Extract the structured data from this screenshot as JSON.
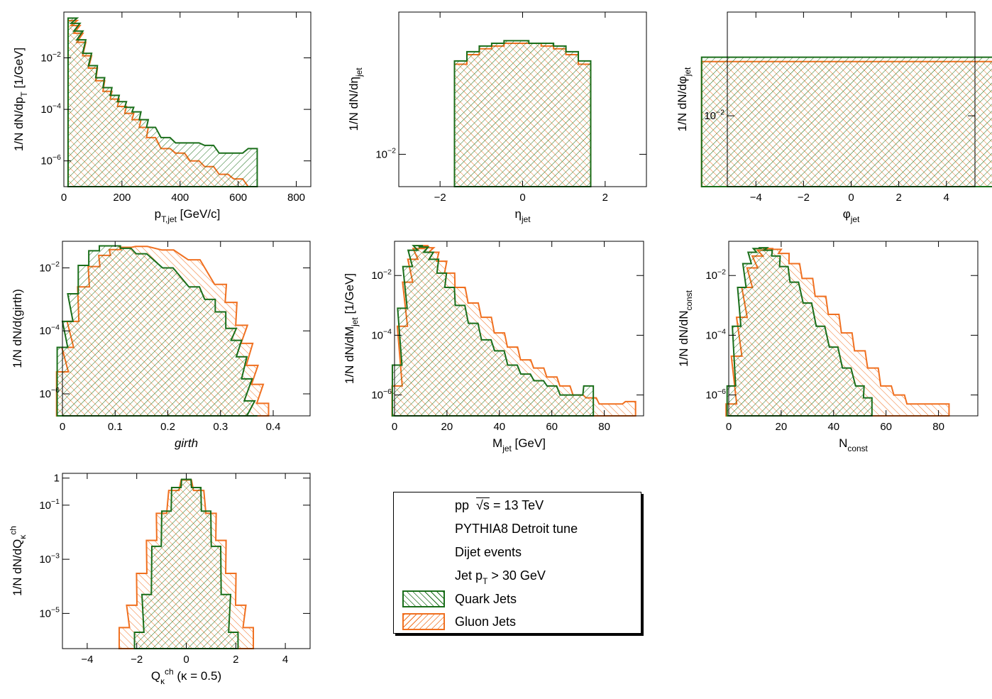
{
  "colors": {
    "quark": "#1a6e1a",
    "gluon": "#f07020",
    "axis": "#000000"
  },
  "legend": {
    "line1_prefix": "pp",
    "line1_sqrt": "√s",
    "line1_suffix": " = 13 TeV",
    "line2": "PYTHIA8 Detroit tune",
    "line3": "Dijet events",
    "line4_pre": "Jet p",
    "line4_sub": "T",
    "line4_post": " > 30 GeV",
    "quark_label": "Quark Jets",
    "gluon_label": "Gluon Jets"
  },
  "chart_data": [
    {
      "id": "pt",
      "type": "histogram",
      "logy": true,
      "xlabel": "p_T,jet [GeV/c]",
      "ylabel": "1/N dN/dp_T [1/GeV]",
      "xlim": [
        0,
        850
      ],
      "ylim": [
        1e-07,
        0.6
      ],
      "xticks": [
        0,
        200,
        400,
        600,
        800
      ],
      "yticks": [
        {
          "v": 0.01,
          "label": "10^-2"
        },
        {
          "v": 0.0001,
          "label": "10^-4"
        },
        {
          "v": 1e-06,
          "label": "10^-6"
        }
      ],
      "series": [
        {
          "name": "Quark Jets",
          "x": [
            30,
            40,
            50,
            60,
            80,
            100,
            125,
            150,
            175,
            200,
            225,
            250,
            275,
            300,
            350,
            400,
            450,
            500,
            550,
            600,
            650
          ],
          "y": [
            0.35,
            0.22,
            0.11,
            0.05,
            0.015,
            0.005,
            0.0017,
            0.0007,
            0.00035,
            0.0002,
            0.00012,
            8e-05,
            4e-05,
            2e-05,
            8e-06,
            5e-06,
            5e-06,
            4e-06,
            2e-06,
            2e-06,
            3e-06
          ]
        },
        {
          "name": "Gluon Jets",
          "x": [
            30,
            40,
            50,
            60,
            80,
            100,
            125,
            150,
            175,
            200,
            225,
            250,
            275,
            300,
            350,
            400,
            450,
            500,
            550,
            600,
            650
          ],
          "y": [
            0.28,
            0.18,
            0.09,
            0.04,
            0.012,
            0.004,
            0.0013,
            0.0005,
            0.00025,
            0.00013,
            7e-05,
            4e-05,
            2e-05,
            8e-06,
            3e-06,
            2e-06,
            1e-06,
            6e-07,
            3e-07,
            2e-07,
            1e-07
          ]
        }
      ]
    },
    {
      "id": "eta",
      "type": "histogram",
      "logy": true,
      "xlabel": "η_jet",
      "ylabel": "1/N dN/dη_jet",
      "xlim": [
        -3,
        3
      ],
      "ylim": [
        0.007,
        0.048
      ],
      "xticks": [
        -2,
        0,
        2
      ],
      "yticks": [
        {
          "v": 0.01,
          "label": "10^-2"
        }
      ],
      "series": [
        {
          "name": "Quark Jets",
          "x": [
            -1.5,
            -1.2,
            -0.9,
            -0.6,
            -0.3,
            0,
            0.3,
            0.6,
            0.9,
            1.2,
            1.5
          ],
          "y": [
            0.028,
            0.031,
            0.033,
            0.034,
            0.035,
            0.035,
            0.034,
            0.034,
            0.033,
            0.031,
            0.028
          ]
        },
        {
          "name": "Gluon Jets",
          "x": [
            -1.5,
            -1.2,
            -0.9,
            -0.6,
            -0.3,
            0,
            0.3,
            0.6,
            0.9,
            1.2,
            1.5
          ],
          "y": [
            0.027,
            0.03,
            0.032,
            0.033,
            0.034,
            0.034,
            0.034,
            0.033,
            0.032,
            0.03,
            0.027
          ]
        }
      ]
    },
    {
      "id": "phi",
      "type": "histogram",
      "logy": true,
      "xlabel": "φ_jet",
      "ylabel": "1/N dN/dφ_jet",
      "xlim": [
        -5.2,
        5.2
      ],
      "ylim": [
        0.0055,
        0.024
      ],
      "xticks": [
        -4,
        -2,
        0,
        2,
        4
      ],
      "yticks": [
        {
          "v": 0.01,
          "label": "10^-2"
        }
      ],
      "series": [
        {
          "name": "Quark Jets",
          "x": [
            -3.14,
            3.14
          ],
          "y": [
            0.0164,
            0.0164
          ]
        },
        {
          "name": "Gluon Jets",
          "x": [
            -3.14,
            3.14
          ],
          "y": [
            0.0158,
            0.0158
          ]
        }
      ]
    },
    {
      "id": "girth",
      "type": "histogram",
      "logy": true,
      "xlabel": "girth",
      "ylabel": "1/N dN/d(girth)",
      "xlim": [
        0,
        0.47
      ],
      "ylim": [
        2e-07,
        0.07
      ],
      "xticks": [
        0,
        0.1,
        0.2,
        0.3,
        0.4
      ],
      "yticks": [
        {
          "v": 0.01,
          "label": "10^-2"
        },
        {
          "v": 0.0001,
          "label": "10^-4"
        },
        {
          "v": 1e-06,
          "label": "10^-6"
        }
      ],
      "series": [
        {
          "name": "Quark Jets",
          "x": [
            0,
            0.01,
            0.02,
            0.04,
            0.06,
            0.08,
            0.1,
            0.12,
            0.15,
            0.2,
            0.25,
            0.28,
            0.3,
            0.32,
            0.33,
            0.34,
            0.35,
            0.355,
            0.36
          ],
          "y": [
            3e-05,
            0.0002,
            0.0015,
            0.012,
            0.035,
            0.05,
            0.05,
            0.042,
            0.028,
            0.01,
            0.0025,
            0.001,
            0.0004,
            0.00012,
            5e-05,
            1.5e-05,
            3e-06,
            6e-07,
            2e-07
          ]
        },
        {
          "name": "Gluon Jets",
          "x": [
            0,
            0.01,
            0.02,
            0.04,
            0.06,
            0.08,
            0.1,
            0.12,
            0.15,
            0.2,
            0.25,
            0.3,
            0.32,
            0.34,
            0.35,
            0.36,
            0.37,
            0.38
          ],
          "y": [
            5e-06,
            3e-05,
            0.0002,
            0.0025,
            0.011,
            0.025,
            0.038,
            0.045,
            0.048,
            0.037,
            0.018,
            0.003,
            0.0008,
            0.00015,
            4e-05,
            8e-06,
            2e-06,
            5e-07
          ]
        }
      ]
    },
    {
      "id": "mass",
      "type": "histogram",
      "logy": true,
      "xlabel": "M_jet [GeV]",
      "ylabel": "1/N dN/dM_jet [1/GeV]",
      "xlim": [
        0,
        95
      ],
      "ylim": [
        2e-07,
        0.14
      ],
      "xticks": [
        0,
        20,
        40,
        60,
        80
      ],
      "yticks": [
        {
          "v": 0.01,
          "label": "10^-2"
        },
        {
          "v": 0.0001,
          "label": "10^-4"
        },
        {
          "v": 1e-06,
          "label": "10^-6"
        }
      ],
      "series": [
        {
          "name": "Quark Jets",
          "x": [
            1,
            3,
            5,
            7,
            9,
            11,
            13,
            15,
            18,
            21,
            25,
            30,
            35,
            40,
            45,
            50,
            55,
            60,
            65,
            70,
            74
          ],
          "y": [
            1e-05,
            0.0008,
            0.02,
            0.07,
            0.1,
            0.09,
            0.06,
            0.035,
            0.012,
            0.004,
            0.001,
            0.00025,
            7e-05,
            3e-05,
            1e-05,
            5e-06,
            3e-06,
            2e-06,
            1e-06,
            1e-06,
            2e-06
          ]
        },
        {
          "name": "Gluon Jets",
          "x": [
            1,
            3,
            5,
            7,
            9,
            11,
            13,
            15,
            18,
            21,
            25,
            30,
            35,
            40,
            45,
            50,
            55,
            60,
            65,
            70,
            75,
            80,
            85,
            90
          ],
          "y": [
            2e-06,
            0.0002,
            0.006,
            0.035,
            0.08,
            0.1,
            0.085,
            0.06,
            0.03,
            0.012,
            0.004,
            0.0012,
            0.0004,
            0.00012,
            4e-05,
            1.5e-05,
            8e-06,
            4e-06,
            2e-06,
            1e-06,
            8e-07,
            5e-07,
            5e-07,
            6e-07
          ]
        }
      ]
    },
    {
      "id": "nconst",
      "type": "histogram",
      "logy": true,
      "xlabel": "N_const",
      "ylabel": "1/N dN/dN_const",
      "xlim": [
        0,
        95
      ],
      "ylim": [
        2e-07,
        0.14
      ],
      "xticks": [
        0,
        20,
        40,
        60,
        80
      ],
      "yticks": [
        {
          "v": 0.01,
          "label": "10^-2"
        },
        {
          "v": 0.0001,
          "label": "10^-4"
        },
        {
          "v": 1e-06,
          "label": "10^-6"
        }
      ],
      "series": [
        {
          "name": "Quark Jets",
          "x": [
            1,
            3,
            5,
            7,
            9,
            11,
            13,
            15,
            18,
            21,
            25,
            30,
            35,
            40,
            45,
            50,
            53
          ],
          "y": [
            2e-06,
            0.0002,
            0.004,
            0.025,
            0.06,
            0.08,
            0.085,
            0.07,
            0.045,
            0.02,
            0.006,
            0.0012,
            0.0002,
            4e-05,
            8e-06,
            2e-06,
            8e-07
          ]
        },
        {
          "name": "Gluon Jets",
          "x": [
            1,
            3,
            5,
            7,
            9,
            11,
            13,
            15,
            18,
            21,
            25,
            30,
            35,
            40,
            45,
            50,
            55,
            60,
            65,
            70,
            82
          ],
          "y": [
            5e-07,
            2e-05,
            0.0004,
            0.004,
            0.018,
            0.045,
            0.07,
            0.08,
            0.075,
            0.055,
            0.025,
            0.008,
            0.002,
            0.0005,
            0.00012,
            3e-05,
            8e-06,
            2e-06,
            1e-06,
            5e-07,
            5e-07
          ]
        }
      ]
    },
    {
      "id": "charge",
      "type": "histogram",
      "logy": true,
      "xlabel": "Q_κ^ch (κ = 0.5)",
      "ylabel": "1/N dN/dQ_κ^ch",
      "xlim": [
        -5,
        5
      ],
      "ylim": [
        5e-07,
        1.5
      ],
      "xticks": [
        -4,
        -2,
        0,
        2,
        4
      ],
      "yticks": [
        {
          "v": 1,
          "label": "1"
        },
        {
          "v": 0.1,
          "label": "10^-1"
        },
        {
          "v": 0.001,
          "label": "10^-3"
        },
        {
          "v": 1e-05,
          "label": "10^-5"
        }
      ],
      "series": [
        {
          "name": "Quark Jets",
          "x": [
            -1.9,
            -1.6,
            -1.2,
            -0.8,
            -0.4,
            0,
            0.4,
            0.8,
            1.2,
            1.6,
            1.9
          ],
          "y": [
            2e-06,
            5e-05,
            0.003,
            0.06,
            0.45,
            0.9,
            0.45,
            0.06,
            0.003,
            5e-05,
            2e-06
          ]
        },
        {
          "name": "Gluon Jets",
          "x": [
            -2.5,
            -2.2,
            -1.8,
            -1.4,
            -1,
            -0.5,
            0,
            0.5,
            1,
            1.4,
            1.8,
            2.2,
            2.5
          ],
          "y": [
            3e-06,
            2e-05,
            0.0003,
            0.005,
            0.05,
            0.35,
            0.85,
            0.35,
            0.05,
            0.005,
            0.0003,
            2e-05,
            3e-06
          ]
        }
      ]
    }
  ]
}
